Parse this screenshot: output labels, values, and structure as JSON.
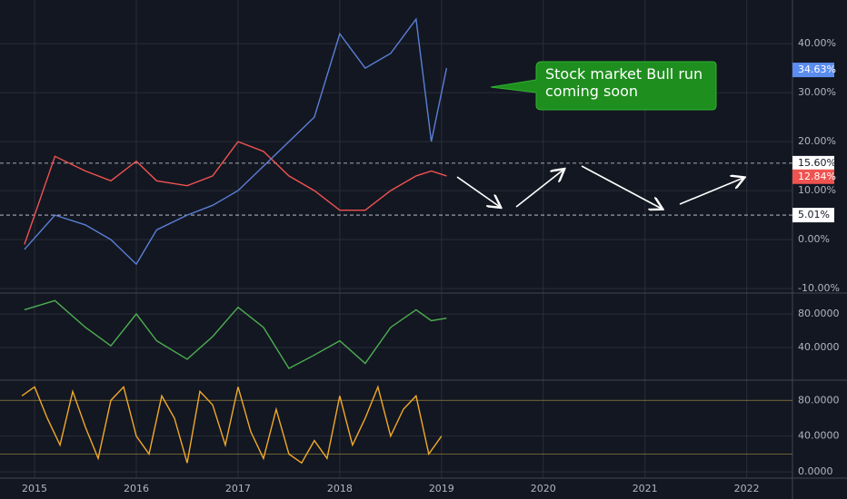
{
  "chart_data": [
    {
      "type": "line",
      "xlim": [
        2014.66,
        2022.45
      ],
      "xticks": [
        2015,
        2016,
        2017,
        2018,
        2019,
        2020,
        2021,
        2022
      ],
      "ylim": [
        -10.9,
        48.9
      ],
      "yticks": [
        {
          "value": -10,
          "label": "-10.00%"
        },
        {
          "value": 0,
          "label": "0.00%"
        },
        {
          "value": 10,
          "label": "10.00%"
        },
        {
          "value": 20,
          "label": "20.00%"
        },
        {
          "value": 30,
          "label": "30.00%"
        },
        {
          "value": 40,
          "label": "40.00%"
        }
      ],
      "x": [
        2014.9,
        2015.2,
        2015.5,
        2015.75,
        2016.0,
        2016.2,
        2016.5,
        2016.75,
        2017.0,
        2017.25,
        2017.5,
        2017.75,
        2018.0,
        2018.25,
        2018.5,
        2018.75,
        2018.9,
        2019.05
      ],
      "series": [
        {
          "color": "#ef5350",
          "values": [
            -1,
            17,
            14,
            12,
            16,
            12,
            11,
            13,
            20,
            18,
            13,
            10,
            6,
            6,
            10,
            13,
            14,
            13
          ]
        },
        {
          "color": "#5b7fd6",
          "values": [
            -2,
            5,
            3,
            0,
            -5,
            2,
            5,
            7,
            10,
            15,
            20,
            25,
            42,
            35,
            38,
            45,
            20,
            35
          ]
        }
      ],
      "hlines": [
        {
          "value": 15.6,
          "label": "15.60%"
        },
        {
          "value": 5.01,
          "label": "5.01%"
        }
      ],
      "price_labels": [
        {
          "value": 34.63,
          "label": "34.63%",
          "color": "#5b8def"
        },
        {
          "value": 12.84,
          "label": "12.84%",
          "color": "#ef5350"
        }
      ],
      "annotation": "Stock market Bull run coming soon"
    },
    {
      "type": "line",
      "ylim": [
        1,
        105
      ],
      "yticks": [
        {
          "value": 40,
          "label": "40.0000"
        },
        {
          "value": 80,
          "label": "80.0000"
        }
      ],
      "x": [
        2014.9,
        2015.2,
        2015.5,
        2015.75,
        2016.0,
        2016.2,
        2016.5,
        2016.75,
        2017.0,
        2017.25,
        2017.5,
        2017.75,
        2018.0,
        2018.25,
        2018.5,
        2018.75,
        2018.9,
        2019.05
      ],
      "series": [
        {
          "color": "#4caf50",
          "values": [
            85,
            96,
            64,
            42,
            80,
            48,
            26,
            53,
            88,
            64,
            15,
            31,
            48,
            21,
            64,
            85,
            72,
            75
          ]
        }
      ]
    },
    {
      "type": "line",
      "ylim": [
        -7,
        102.6
      ],
      "yticks": [
        {
          "value": 0,
          "label": "0.0000"
        },
        {
          "value": 40,
          "label": "40.0000"
        },
        {
          "value": 80,
          "label": "80.0000"
        }
      ],
      "bands": [
        20,
        80
      ],
      "x": [
        2014.875,
        2015,
        2015.125,
        2015.25,
        2015.375,
        2015.5,
        2015.625,
        2015.75,
        2015.875,
        2016,
        2016.125,
        2016.25,
        2016.375,
        2016.5,
        2016.625,
        2016.75,
        2016.875,
        2017,
        2017.125,
        2017.25,
        2017.375,
        2017.5,
        2017.625,
        2017.75,
        2017.875,
        2018,
        2018.125,
        2018.25,
        2018.375,
        2018.5,
        2018.625,
        2018.75,
        2018.875,
        2019
      ],
      "series": [
        {
          "color": "#f0a92a",
          "values": [
            85,
            95,
            60,
            30,
            90,
            50,
            15,
            80,
            95,
            40,
            20,
            85,
            60,
            10,
            90,
            75,
            30,
            95,
            45,
            15,
            70,
            20,
            10,
            35,
            15,
            85,
            30,
            60,
            95,
            40,
            70,
            85,
            20,
            40
          ]
        }
      ]
    }
  ]
}
